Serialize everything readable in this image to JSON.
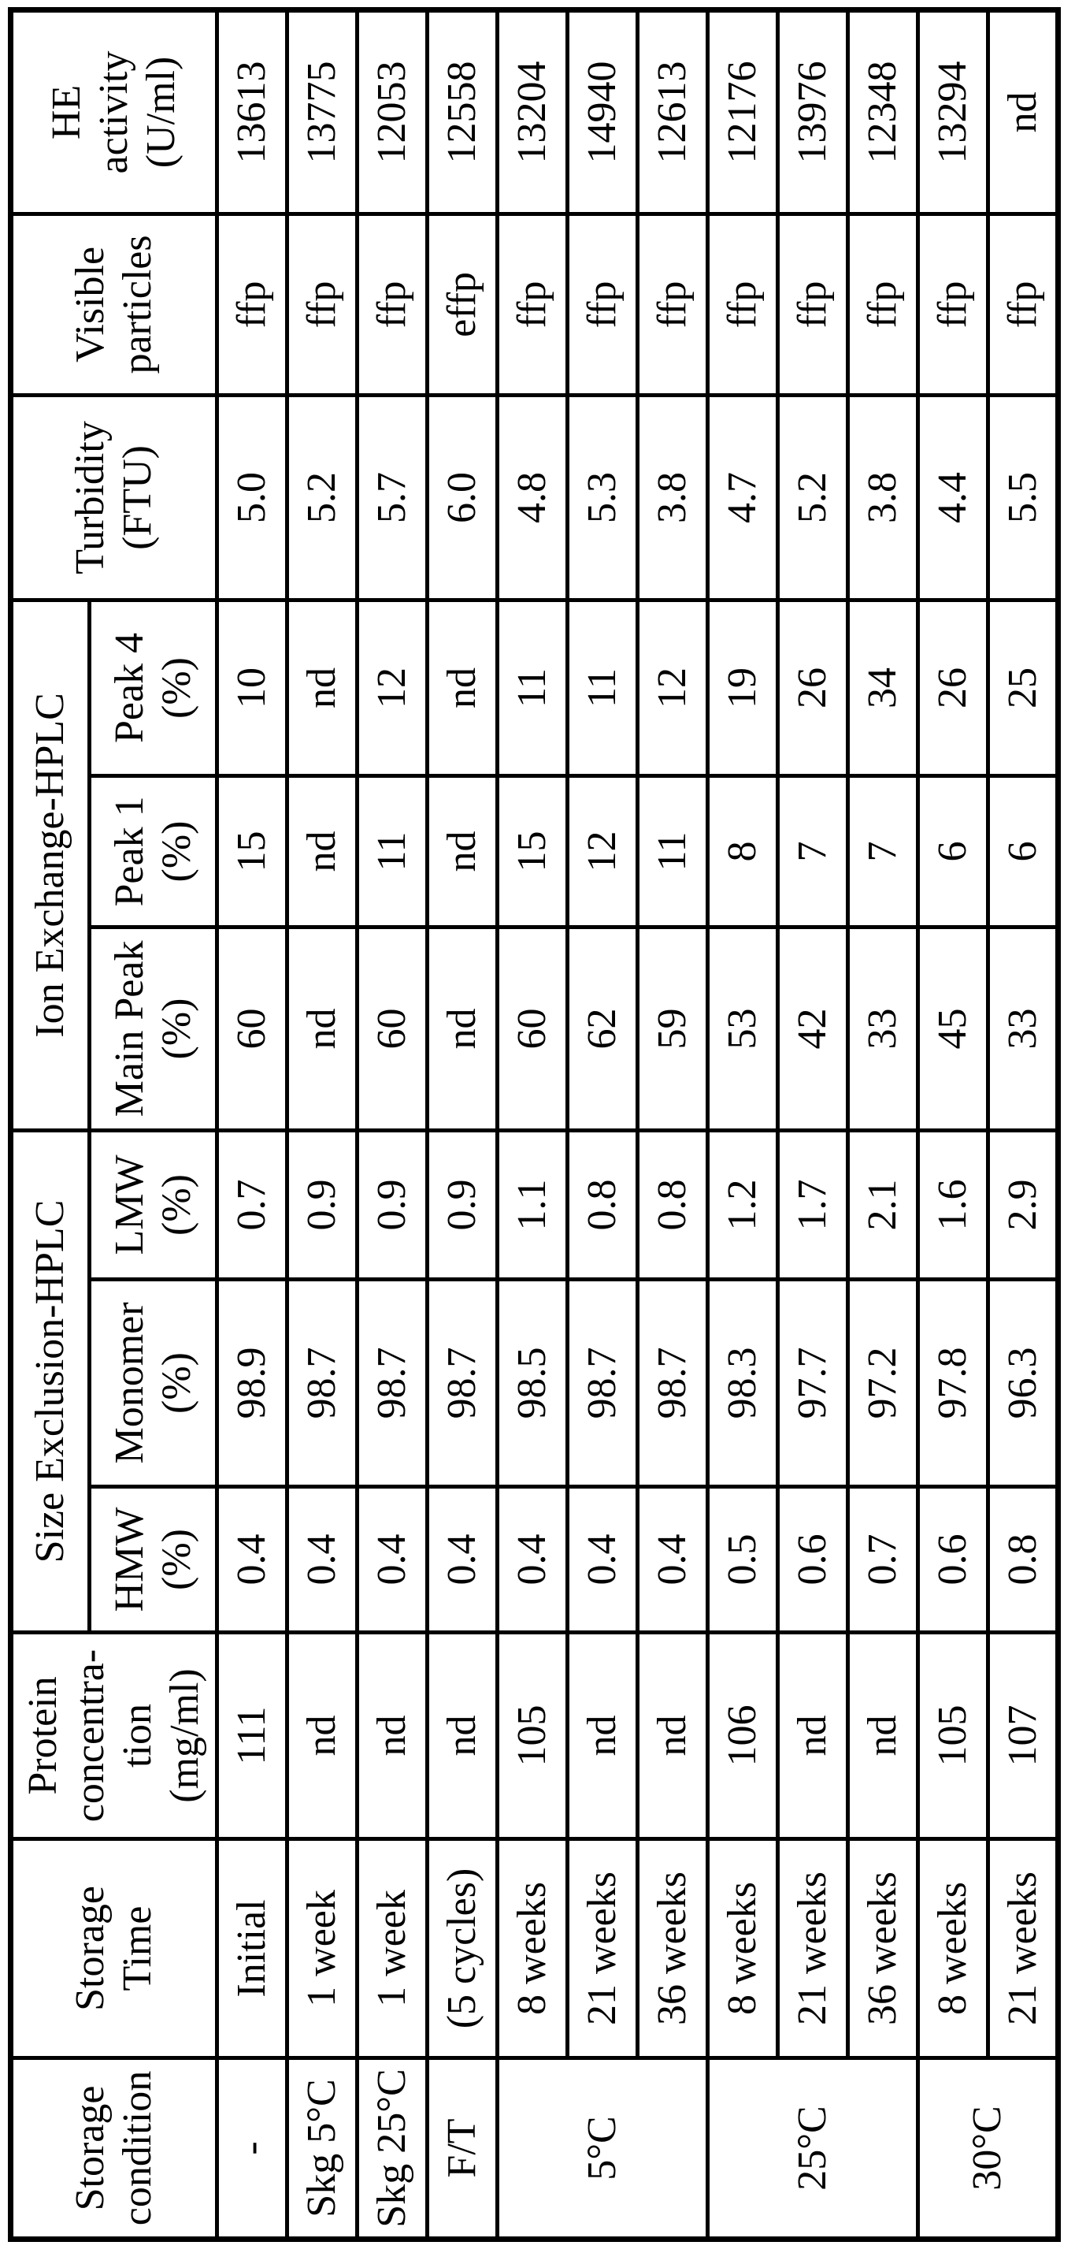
{
  "table": {
    "headers": {
      "storage_condition": "Storage\ncondition",
      "storage_time": "Storage\nTime",
      "protein_concentration": "Protein\nconcentra-\ntion\n(mg/ml)",
      "sec_group": "Size Exclusion-HPLC",
      "hmw": "HMW\n(%)",
      "monomer": "Monomer\n(%)",
      "lmw": "LMW\n(%)",
      "iex_group": "Ion Exchange-HPLC",
      "main_peak": "Main Peak\n(%)",
      "peak1": "Peak 1\n(%)",
      "peak4": "Peak 4\n(%)",
      "turbidity": "Turbidity\n(FTU)",
      "visible_particles": "Visible\nparticles",
      "he_activity": "HE\nactivity\n(U/ml)"
    },
    "condition_groups": [
      {
        "condition": "-",
        "rowspan": 1
      },
      {
        "condition": "Skg 5°C",
        "rowspan": 1
      },
      {
        "condition": "Skg 25°C",
        "rowspan": 1
      },
      {
        "condition": "F/T",
        "rowspan": 1
      },
      {
        "condition": "5°C",
        "rowspan": 3
      },
      {
        "condition": "25°C",
        "rowspan": 3
      },
      {
        "condition": "30°C",
        "rowspan": 2
      }
    ],
    "rows": [
      {
        "time": "Initial",
        "protein": "111",
        "hmw": "0.4",
        "monomer": "98.9",
        "lmw": "0.7",
        "main_peak": "60",
        "peak1": "15",
        "peak4": "10",
        "turbidity": "5.0",
        "particles": "ffp",
        "he": "13613"
      },
      {
        "time": "1 week",
        "protein": "nd",
        "hmw": "0.4",
        "monomer": "98.7",
        "lmw": "0.9",
        "main_peak": "nd",
        "peak1": "nd",
        "peak4": "nd",
        "turbidity": "5.2",
        "particles": "ffp",
        "he": "13775"
      },
      {
        "time": "1 week",
        "protein": "nd",
        "hmw": "0.4",
        "monomer": "98.7",
        "lmw": "0.9",
        "main_peak": "60",
        "peak1": "11",
        "peak4": "12",
        "turbidity": "5.7",
        "particles": "ffp",
        "he": "12053"
      },
      {
        "time": "(5 cycles)",
        "protein": "nd",
        "hmw": "0.4",
        "monomer": "98.7",
        "lmw": "0.9",
        "main_peak": "nd",
        "peak1": "nd",
        "peak4": "nd",
        "turbidity": "6.0",
        "particles": "effp",
        "he": "12558"
      },
      {
        "time": "8 weeks",
        "protein": "105",
        "hmw": "0.4",
        "monomer": "98.5",
        "lmw": "1.1",
        "main_peak": "60",
        "peak1": "15",
        "peak4": "11",
        "turbidity": "4.8",
        "particles": "ffp",
        "he": "13204"
      },
      {
        "time": "21 weeks",
        "protein": "nd",
        "hmw": "0.4",
        "monomer": "98.7",
        "lmw": "0.8",
        "main_peak": "62",
        "peak1": "12",
        "peak4": "11",
        "turbidity": "5.3",
        "particles": "ffp",
        "he": "14940"
      },
      {
        "time": "36 weeks",
        "protein": "nd",
        "hmw": "0.4",
        "monomer": "98.7",
        "lmw": "0.8",
        "main_peak": "59",
        "peak1": "11",
        "peak4": "12",
        "turbidity": "3.8",
        "particles": "ffp",
        "he": "12613"
      },
      {
        "time": "8 weeks",
        "protein": "106",
        "hmw": "0.5",
        "monomer": "98.3",
        "lmw": "1.2",
        "main_peak": "53",
        "peak1": "8",
        "peak4": "19",
        "turbidity": "4.7",
        "particles": "ffp",
        "he": "12176"
      },
      {
        "time": "21 weeks",
        "protein": "nd",
        "hmw": "0.6",
        "monomer": "97.7",
        "lmw": "1.7",
        "main_peak": "42",
        "peak1": "7",
        "peak4": "26",
        "turbidity": "5.2",
        "particles": "ffp",
        "he": "13976"
      },
      {
        "time": "36 weeks",
        "protein": "nd",
        "hmw": "0.7",
        "monomer": "97.2",
        "lmw": "2.1",
        "main_peak": "33",
        "peak1": "7",
        "peak4": "34",
        "turbidity": "3.8",
        "particles": "ffp",
        "he": "12348"
      },
      {
        "time": "8 weeks",
        "protein": "105",
        "hmw": "0.6",
        "monomer": "97.8",
        "lmw": "1.6",
        "main_peak": "45",
        "peak1": "6",
        "peak4": "26",
        "turbidity": "4.4",
        "particles": "ffp",
        "he": "13294"
      },
      {
        "time": "21 weeks",
        "protein": "107",
        "hmw": "0.8",
        "monomer": "96.3",
        "lmw": "2.9",
        "main_peak": "33",
        "peak1": "6",
        "peak4": "25",
        "turbidity": "5.5",
        "particles": "ffp",
        "he": "nd"
      }
    ]
  }
}
